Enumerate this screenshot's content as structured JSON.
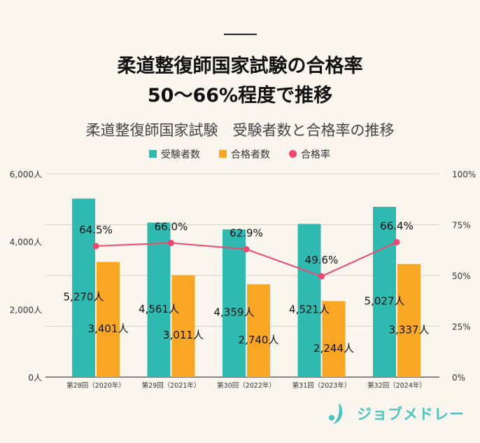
{
  "headline": {
    "line1": "柔道整復師国家試験の合格率",
    "line2": "50～66%程度で推移"
  },
  "brand": {
    "logo_text": "ジョブメドレー"
  },
  "chart_data": {
    "type": "bar+line",
    "title": "柔道整復師国家試験　受験者数と合格率の推移",
    "categories": [
      "第28回（2020年）",
      "第29回（2021年）",
      "第30回（2022年）",
      "第31回（2023年）",
      "第32回（2024年）"
    ],
    "series": [
      {
        "name": "受験者数",
        "type": "bar",
        "axis": "left",
        "color": "#2fbab1",
        "values": [
          5270,
          4561,
          4359,
          4521,
          5027
        ],
        "labels": [
          "5,270人",
          "4,561人",
          "4,359人",
          "4,521人",
          "5,027人"
        ]
      },
      {
        "name": "合格者数",
        "type": "bar",
        "axis": "left",
        "color": "#f8a623",
        "values": [
          3401,
          3011,
          2740,
          2244,
          3337
        ],
        "labels": [
          "3,401人",
          "3,011人",
          "2,740人",
          "2,244人",
          "3,337人"
        ]
      },
      {
        "name": "合格率",
        "type": "line",
        "axis": "right",
        "color": "#f2466e",
        "values": [
          64.5,
          66.0,
          62.9,
          49.6,
          66.4
        ],
        "labels": [
          "64.5%",
          "66.0%",
          "62.9%",
          "49.6%",
          "66.4%"
        ]
      }
    ],
    "y_left": {
      "range": [
        0,
        6000
      ],
      "ticks": [
        "0人",
        "2,000人",
        "4,000人",
        "6,000人"
      ]
    },
    "y_right": {
      "range": [
        0,
        100
      ],
      "ticks": [
        "0%",
        "25%",
        "50%",
        "75%",
        "100%"
      ]
    },
    "grid": true,
    "legend": "top-center"
  }
}
